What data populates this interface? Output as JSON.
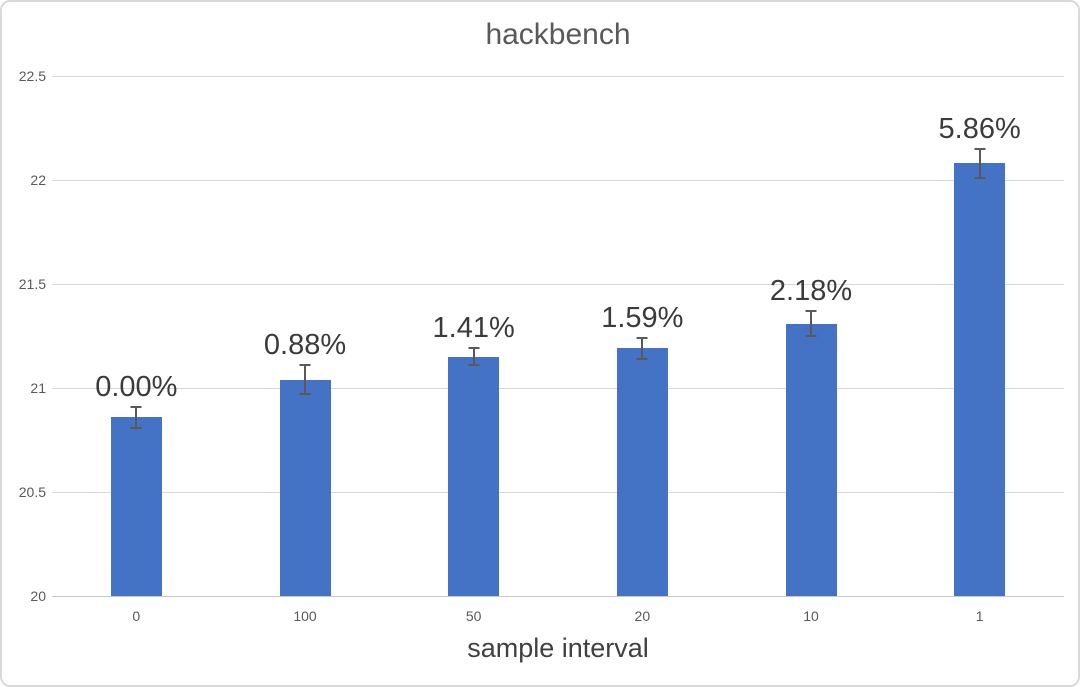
{
  "chart_data": {
    "type": "bar",
    "title": "hackbench",
    "xlabel": "sample interval",
    "ylabel": "",
    "categories": [
      "0",
      "100",
      "50",
      "20",
      "10",
      "1"
    ],
    "values": [
      20.86,
      21.04,
      21.15,
      21.19,
      21.31,
      22.08
    ],
    "errors": [
      0.05,
      0.07,
      0.04,
      0.05,
      0.06,
      0.07
    ],
    "bar_labels": [
      "0.00%",
      "0.88%",
      "1.41%",
      "1.59%",
      "2.18%",
      "5.86%"
    ],
    "ylim": [
      20,
      22.5
    ],
    "yticks": [
      20,
      20.5,
      21,
      21.5,
      22,
      22.5
    ],
    "grid": true,
    "legend": null,
    "colors": {
      "bar": "#4472c4",
      "gridline": "#d9d9d9",
      "axis_line": "#c6c6c6",
      "title": "#595959",
      "tick_label": "#595959",
      "data_label": "#3b3b3b",
      "error_bar": "#595959"
    }
  }
}
